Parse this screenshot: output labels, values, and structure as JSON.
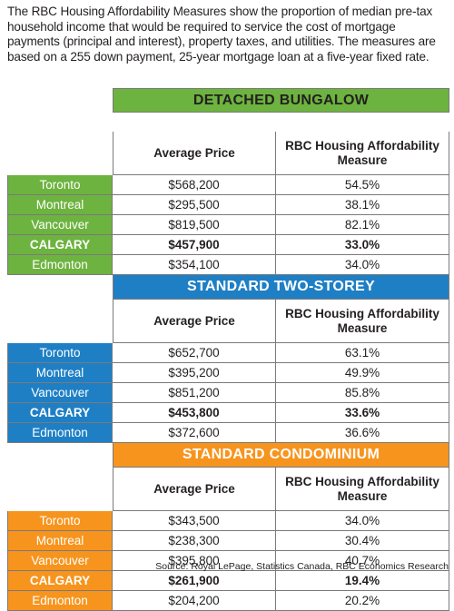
{
  "intro": "The RBC Housing Affordability Measures show the proportion of median pre-tax household income that would be required to service the cost of mortgage payments (principal and interest), property taxes, and utilities. The measures are based on a 255 down payment, 25-year mortgage loan at a five-year fixed rate.",
  "colors": {
    "green": "#6db33f",
    "blue": "#1e7fc5",
    "orange": "#f7941d"
  },
  "headers": {
    "price": "Average Price",
    "measure": "RBC Housing Affordability Measure"
  },
  "sections": [
    {
      "title": "DETACHED BUNGALOW",
      "color": "green",
      "rows": [
        {
          "city": "Toronto",
          "price": "$568,200",
          "measure": "54.5%"
        },
        {
          "city": "Montreal",
          "price": "$295,500",
          "measure": "38.1%"
        },
        {
          "city": "Vancouver",
          "price": "$819,500",
          "measure": "82.1%"
        },
        {
          "city": "CALGARY",
          "price": "$457,900",
          "measure": "33.0%"
        },
        {
          "city": "Edmonton",
          "price": "$354,100",
          "measure": "34.0%"
        }
      ]
    },
    {
      "title": "STANDARD TWO-STOREY",
      "color": "blue",
      "rows": [
        {
          "city": "Toronto",
          "price": "$652,700",
          "measure": "63.1%"
        },
        {
          "city": "Montreal",
          "price": "$395,200",
          "measure": "49.9%"
        },
        {
          "city": "Vancouver",
          "price": "$851,200",
          "measure": "85.8%"
        },
        {
          "city": "CALGARY",
          "price": "$453,800",
          "measure": "33.6%"
        },
        {
          "city": "Edmonton",
          "price": "$372,600",
          "measure": "36.6%"
        }
      ]
    },
    {
      "title": "STANDARD CONDOMINIUM",
      "color": "orange",
      "rows": [
        {
          "city": "Toronto",
          "price": "$343,500",
          "measure": "34.0%"
        },
        {
          "city": "Montreal",
          "price": "$238,300",
          "measure": "30.4%"
        },
        {
          "city": "Vancouver",
          "price": "$395,800",
          "measure": "40.7%"
        },
        {
          "city": "CALGARY",
          "price": "$261,900",
          "measure": "19.4%"
        },
        {
          "city": "Edmonton",
          "price": "$204,200",
          "measure": "20.2%"
        }
      ]
    }
  ],
  "source": "Source: Royal LePage, Statistics Canada, RBC Economics Research"
}
